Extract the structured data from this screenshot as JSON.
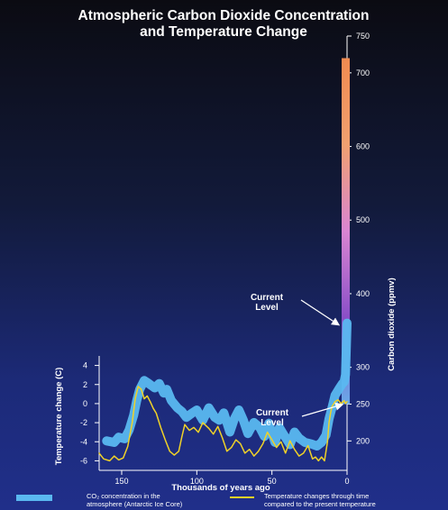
{
  "chart_data": {
    "type": "line",
    "title_lines": [
      "Atmospheric Carbon Dioxide Concentration",
      "and Temperature Change"
    ],
    "xlabel": "Thousands of years ago",
    "x_ticks": [
      150,
      100,
      50,
      0
    ],
    "xlim": [
      165,
      0
    ],
    "left_axis": {
      "label": "Temperature change (C)",
      "ticks": [
        4,
        2,
        0,
        -2,
        -4,
        -6
      ],
      "range": [
        -7,
        5
      ]
    },
    "right_axis": {
      "label": "Carbon dioxide (ppmv)",
      "ticks": [
        750,
        700,
        600,
        500,
        400,
        300,
        250,
        200
      ],
      "range": [
        160,
        750
      ]
    },
    "series": [
      {
        "name": "CO2 concentration in the atmosphere (Antarctic Ice Core)",
        "axis": "right",
        "color": "#5ab8f0",
        "x": [
          160,
          155,
          152,
          148,
          145,
          142,
          140,
          138,
          135,
          132,
          130,
          128,
          125,
          122,
          120,
          117,
          113,
          110,
          107,
          103,
          100,
          96,
          92,
          88,
          85,
          82,
          78,
          75,
          72,
          69,
          66,
          62,
          58,
          55,
          52,
          48,
          45,
          42,
          38,
          35,
          32,
          28,
          24,
          20,
          17,
          14,
          12,
          10,
          8,
          5,
          3,
          2,
          1,
          0
        ],
        "y": [
          200,
          198,
          205,
          203,
          215,
          235,
          255,
          270,
          282,
          278,
          275,
          272,
          278,
          265,
          270,
          255,
          245,
          240,
          232,
          238,
          242,
          228,
          245,
          232,
          228,
          238,
          212,
          230,
          242,
          228,
          210,
          225,
          218,
          206,
          224,
          198,
          218,
          208,
          195,
          212,
          204,
          198,
          196,
          193,
          198,
          208,
          230,
          245,
          262,
          272,
          278,
          280,
          290,
          360
        ]
      },
      {
        "name": "Temperature changes through time compared to the present temperature",
        "axis": "left",
        "color": "#f0d228",
        "x": [
          165,
          162,
          158,
          155,
          152,
          149,
          146,
          143,
          141,
          139,
          137,
          135,
          133,
          131,
          129,
          127,
          124,
          121,
          118,
          115,
          112,
          110,
          108,
          105,
          102,
          99,
          96,
          92,
          89,
          86,
          83,
          80,
          77,
          74,
          71,
          68,
          65,
          62,
          59,
          56,
          53,
          50,
          47,
          44,
          41,
          38,
          35,
          32,
          29,
          26,
          23,
          21,
          19,
          17,
          15,
          13,
          12,
          11,
          10,
          8,
          6,
          4,
          2,
          1,
          0
        ],
        "y": [
          -5.2,
          -5.8,
          -6.0,
          -5.5,
          -5.9,
          -5.7,
          -4.5,
          -2.0,
          0.5,
          1.8,
          1.5,
          0.5,
          0.8,
          0.2,
          -0.5,
          -1.0,
          -2.5,
          -3.8,
          -5.0,
          -5.4,
          -5.0,
          -3.5,
          -2.2,
          -2.8,
          -2.5,
          -3.0,
          -2.0,
          -2.6,
          -3.2,
          -2.4,
          -3.6,
          -5.0,
          -4.6,
          -3.8,
          -4.2,
          -5.2,
          -4.8,
          -5.5,
          -5.0,
          -4.2,
          -3.0,
          -3.8,
          -4.6,
          -4.0,
          -5.2,
          -3.9,
          -4.8,
          -5.5,
          -5.2,
          -4.4,
          -5.8,
          -5.6,
          -6.0,
          -5.6,
          -6.0,
          -4.0,
          -2.0,
          -1.0,
          -0.3,
          0.2,
          0.4,
          0.0,
          0.3,
          0.0,
          0.2
        ]
      }
    ],
    "projection": {
      "axis": "right",
      "x": 0,
      "from": 250,
      "to": 720,
      "colors": [
        "#6aa9e8",
        "#8a4fc8",
        "#d985d2",
        "#f0a070",
        "#f08a50"
      ]
    },
    "annotations": [
      {
        "text_lines": [
          "Current",
          "Level"
        ],
        "points_to": {
          "axis": "right",
          "x": 0,
          "y": 360
        }
      },
      {
        "text_lines": [
          "Current",
          "Level"
        ],
        "points_to": {
          "axis": "left",
          "x": 0,
          "y": 0
        }
      }
    ],
    "legend": [
      {
        "text_lines": [
          "CO₂ concentration in the",
          "atmosphere (Antarctic Ice Core)"
        ],
        "color": "#5ab8f0"
      },
      {
        "text_lines": [
          "Temperature changes through time",
          "compared to the present temperature"
        ],
        "color": "#f0d228"
      }
    ]
  }
}
